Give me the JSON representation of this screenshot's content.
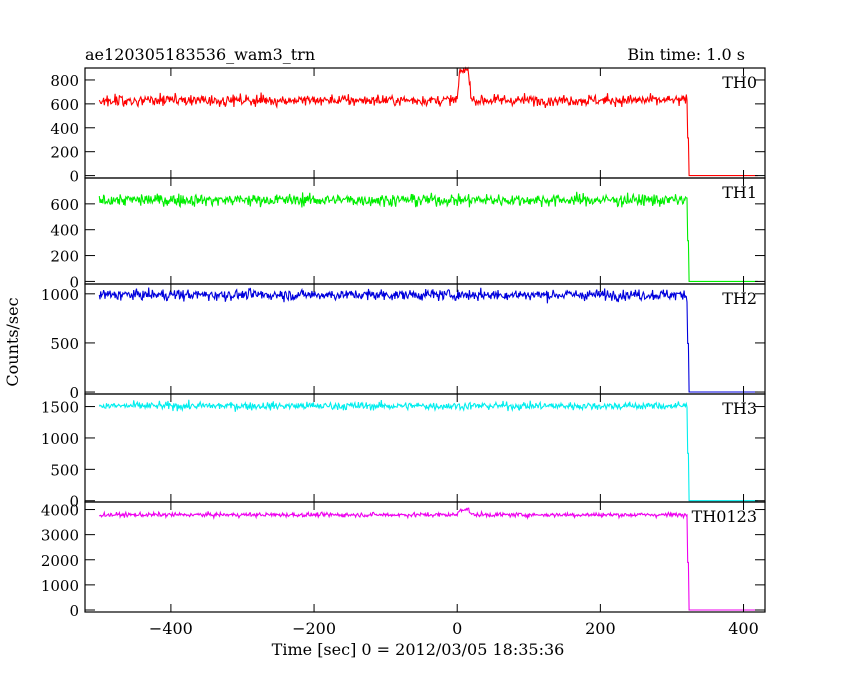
{
  "header": {
    "left": "ae120305183536_wam3_trn",
    "right": "Bin time: 1.0 s"
  },
  "chart_data": {
    "type": "line",
    "title": "ae120305183536_wam3_trn",
    "xlabel": "Time [sec] 0 = 2012/03/05 18:35:36",
    "ylabel": "Counts/sec",
    "xlim": [
      -520,
      430
    ],
    "x_ticks": [
      -400,
      -200,
      0,
      200,
      400
    ],
    "x_tick_labels": [
      "−400",
      "−200",
      "0",
      "200",
      "400"
    ],
    "cutoff_time": 322,
    "x_end": 420,
    "grid": false,
    "panels": [
      {
        "name": "TH0",
        "color": "#ff0000",
        "ylim": [
          -20,
          900
        ],
        "ticks": [
          0,
          200,
          400,
          600,
          800
        ],
        "tick_labels": [
          "0",
          "200",
          "400",
          "600",
          "800"
        ],
        "level": 630,
        "noise": 30,
        "bumps": [
          {
            "t0": 0,
            "t1": 20,
            "peak": 250
          }
        ]
      },
      {
        "name": "TH1",
        "color": "#00ee00",
        "ylim": [
          -20,
          800
        ],
        "ticks": [
          0,
          200,
          400,
          600
        ],
        "tick_labels": [
          "0",
          "200",
          "400",
          "600"
        ],
        "level": 630,
        "noise": 30,
        "bumps": []
      },
      {
        "name": "TH2",
        "color": "#0000dd",
        "ylim": [
          -20,
          1100
        ],
        "ticks": [
          0,
          500,
          1000
        ],
        "tick_labels": [
          "0",
          "500",
          "1000"
        ],
        "level": 990,
        "noise": 35,
        "bumps": []
      },
      {
        "name": "TH3",
        "color": "#00eeee",
        "ylim": [
          -20,
          1700
        ],
        "ticks": [
          0,
          500,
          1000,
          1500
        ],
        "tick_labels": [
          "0",
          "500",
          "1000",
          "1500"
        ],
        "level": 1510,
        "noise": 40,
        "bumps": []
      },
      {
        "name": "TH0123",
        "color": "#ee00ee",
        "ylim": [
          -80,
          4300
        ],
        "ticks": [
          0,
          1000,
          2000,
          3000,
          4000
        ],
        "tick_labels": [
          "0",
          "1000",
          "2000",
          "3000",
          "4000"
        ],
        "level": 3790,
        "noise": 55,
        "bumps": [
          {
            "t0": 0,
            "t1": 20,
            "peak": 220
          }
        ]
      }
    ]
  }
}
